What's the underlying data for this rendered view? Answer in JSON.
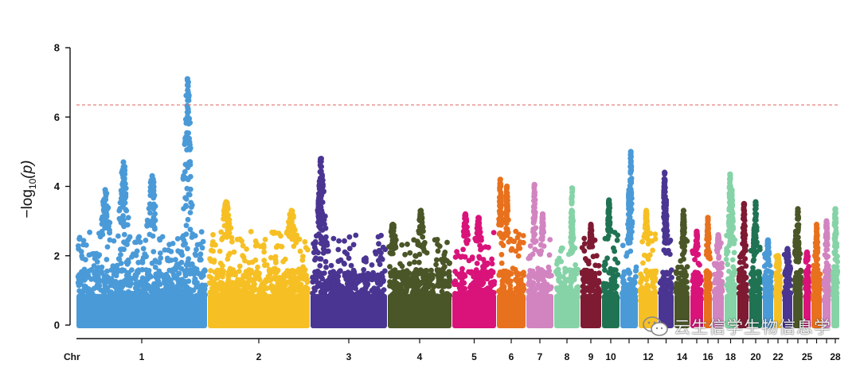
{
  "chart_data": {
    "type": "scatter",
    "subtype": "manhattan",
    "title": "",
    "ylabel": "−log10(p)",
    "ylabel_parts": {
      "prefix": "−log",
      "sub": "10",
      "suffix": "(p)"
    },
    "xlabel_prefix": "Chr",
    "ylim": [
      0,
      8
    ],
    "yticks": [
      "0",
      "2",
      "4",
      "6",
      "8"
    ],
    "threshold": 6.35,
    "threshold_color": "#e06060",
    "chromosome_labels": [
      "1",
      "2",
      "3",
      "4",
      "5",
      "6",
      "7",
      "8",
      "9",
      "10",
      "12",
      "14",
      "16",
      "18",
      "20",
      "22",
      "25",
      "28"
    ],
    "chromosomes": [
      {
        "id": "1",
        "color": "#4a9ad8",
        "peaks": [
          4.7,
          7.1,
          4.3,
          3.9
        ],
        "base": 2.4
      },
      {
        "id": "2",
        "color": "#f6c025",
        "peaks": [
          3.55,
          3.3
        ],
        "base": 2.4
      },
      {
        "id": "3",
        "color": "#4a3592",
        "peaks": [
          4.8,
          3.8
        ],
        "base": 2.3
      },
      {
        "id": "4",
        "color": "#4a5627",
        "peaks": [
          3.3,
          2.9
        ],
        "base": 2.2
      },
      {
        "id": "5",
        "color": "#d9137a",
        "peaks": [
          3.2,
          3.1
        ],
        "base": 2.4
      },
      {
        "id": "6",
        "color": "#e8711d",
        "peaks": [
          4.2,
          4.0
        ],
        "base": 2.5
      },
      {
        "id": "7",
        "color": "#d284c0",
        "peaks": [
          4.05,
          3.2
        ],
        "base": 2.2
      },
      {
        "id": "8",
        "color": "#86d3a7",
        "peaks": [
          3.95,
          3.1
        ],
        "base": 2.0
      },
      {
        "id": "9",
        "color": "#7f1a33",
        "peaks": [
          2.9
        ],
        "base": 2.2
      },
      {
        "id": "10",
        "color": "#1f7353",
        "peaks": [
          3.6
        ],
        "base": 2.5
      },
      {
        "id": "11",
        "color": "#4a9ad8",
        "peaks": [
          5.0,
          3.9
        ],
        "base": 2.2
      },
      {
        "id": "12",
        "color": "#f6c025",
        "peaks": [
          3.3
        ],
        "base": 2.4
      },
      {
        "id": "13",
        "color": "#4a3592",
        "peaks": [
          4.4,
          3.6
        ],
        "base": 2.3
      },
      {
        "id": "14",
        "color": "#4a5627",
        "peaks": [
          3.3
        ],
        "base": 2.2
      },
      {
        "id": "15",
        "color": "#d9137a",
        "peaks": [
          2.7
        ],
        "base": 1.9
      },
      {
        "id": "16",
        "color": "#e8711d",
        "peaks": [
          3.1
        ],
        "base": 1.9
      },
      {
        "id": "17",
        "color": "#d284c0",
        "peaks": [
          2.6
        ],
        "base": 2.1
      },
      {
        "id": "18",
        "color": "#86d3a7",
        "peaks": [
          4.35,
          3.9
        ],
        "base": 2.3
      },
      {
        "id": "19",
        "color": "#7f1a33",
        "peaks": [
          3.5
        ],
        "base": 2.0
      },
      {
        "id": "20",
        "color": "#1f7353",
        "peaks": [
          3.55,
          2.8
        ],
        "base": 2.0
      },
      {
        "id": "21",
        "color": "#4a9ad8",
        "peaks": [
          2.45
        ],
        "base": 1.8
      },
      {
        "id": "22",
        "color": "#f6c025",
        "peaks": [
          2.0
        ],
        "base": 1.7
      },
      {
        "id": "23",
        "color": "#4a3592",
        "peaks": [
          2.2
        ],
        "base": 1.8
      },
      {
        "id": "24",
        "color": "#4a5627",
        "peaks": [
          3.35,
          2.7
        ],
        "base": 1.8
      },
      {
        "id": "25",
        "color": "#d9137a",
        "peaks": [
          2.1
        ],
        "base": 1.8
      },
      {
        "id": "26",
        "color": "#e8711d",
        "peaks": [
          2.9
        ],
        "base": 1.9
      },
      {
        "id": "27",
        "color": "#d284c0",
        "peaks": [
          3.0
        ],
        "base": 1.8
      },
      {
        "id": "28",
        "color": "#86d3a7",
        "peaks": [
          3.35
        ],
        "base": 2.0
      }
    ]
  },
  "watermark": {
    "text": "云生信学生物信息学",
    "icon": "wechat-icon"
  }
}
